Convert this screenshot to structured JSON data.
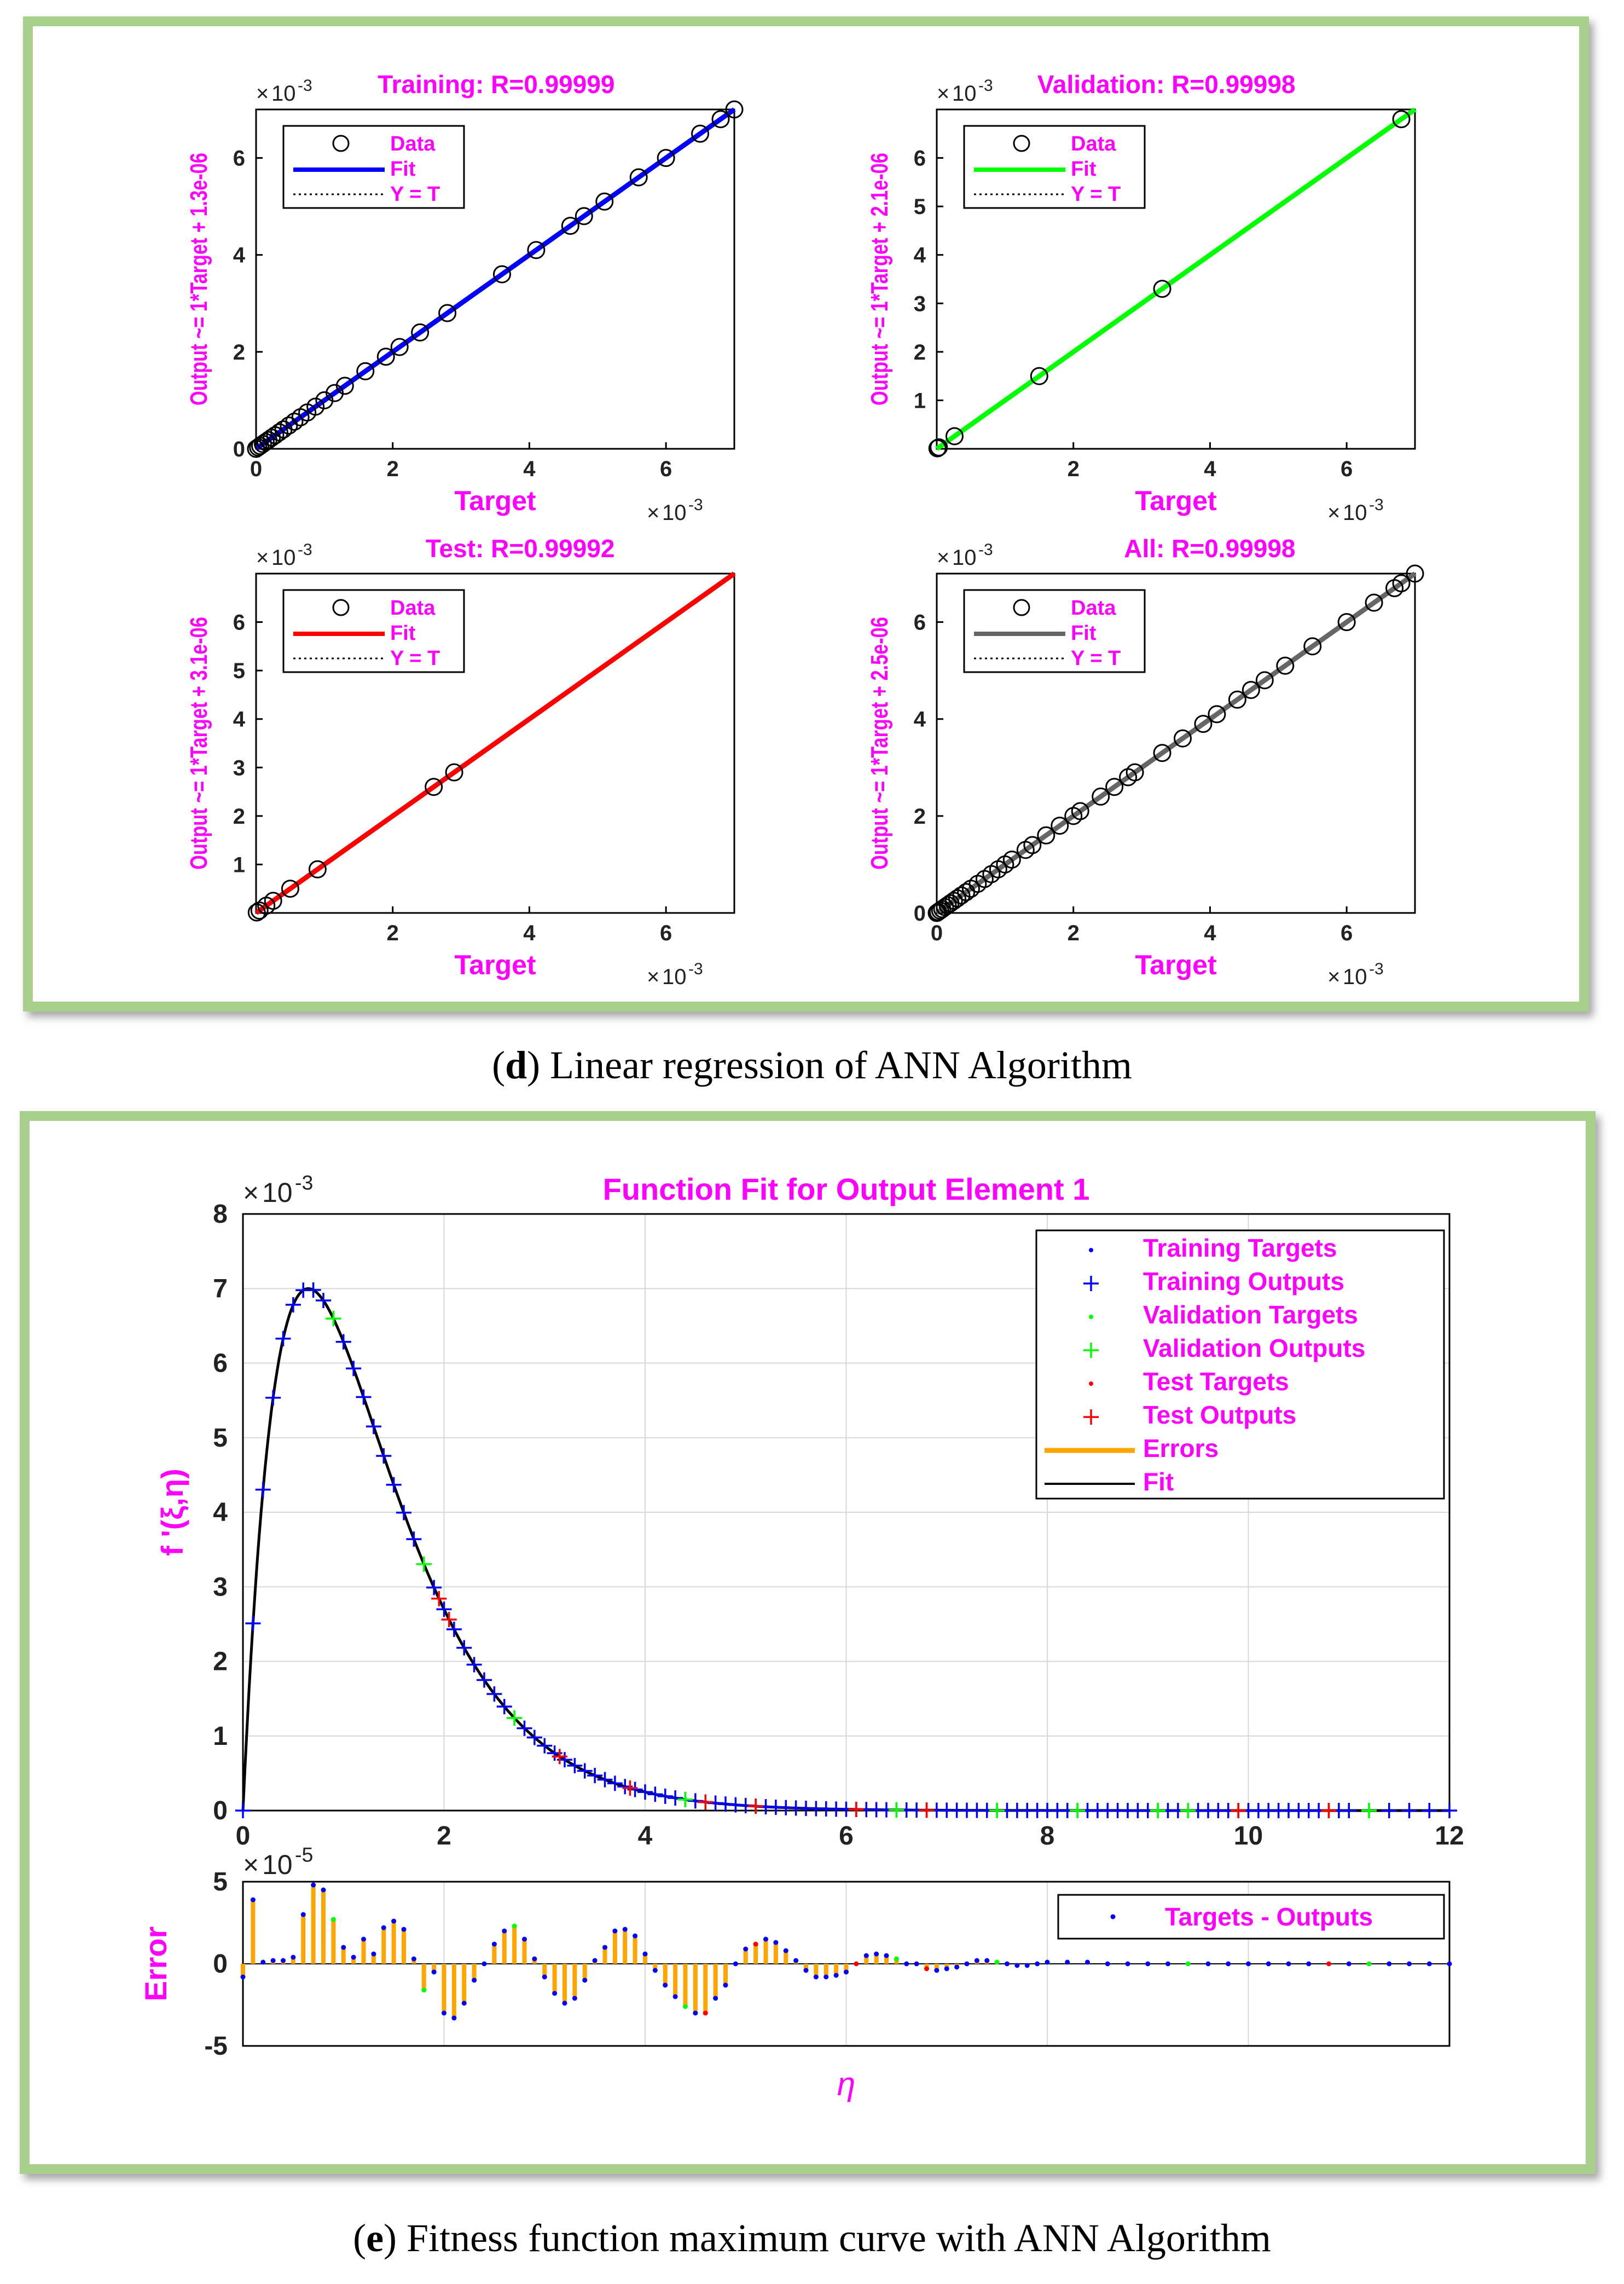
{
  "captions": {
    "d": {
      "letter": "d",
      "text": "Linear regression of ANN Algorithm"
    },
    "e": {
      "letter": "e",
      "text": "Fitness function maximum curve with ANN Algorithm"
    }
  },
  "colors": {
    "magenta": "#ff00ff",
    "training": "#0000ff",
    "validation": "#00ff00",
    "test": "#ff0000",
    "all": "#666666",
    "error": "#ffa500",
    "frame": "#a9cf8c"
  },
  "chart_data": [
    {
      "type": "scatter",
      "title": "Training: R=0.99999",
      "xlabel": "Target",
      "ylabel": "Output ~= 1*Target + 1.3e-06",
      "xlim": [
        0,
        0.007
      ],
      "ylim": [
        0,
        0.007
      ],
      "xticks": [
        "0",
        "2",
        "4",
        "6"
      ],
      "yticks": [
        "0",
        "2",
        "4",
        "6"
      ],
      "exponent": "10",
      "exponent_power": "-3",
      "exponent_prefix": "×",
      "fit_color": "#0000ff",
      "legend": [
        "Data",
        "Fit",
        "Y = T"
      ],
      "data": [
        0,
        3e-05,
        6e-05,
        0.0001,
        0.00014,
        0.00018,
        0.00023,
        0.00028,
        0.00034,
        0.0004,
        0.00048,
        0.00056,
        0.00065,
        0.00075,
        0.00087,
        0.001,
        0.00115,
        0.0013,
        0.0016,
        0.0019,
        0.0021,
        0.0024,
        0.0028,
        0.0036,
        0.0041,
        0.0046,
        0.0048,
        0.0051,
        0.0056,
        0.006,
        0.0065,
        0.0068,
        0.007
      ]
    },
    {
      "type": "scatter",
      "title": "Validation: R=0.99998",
      "xlabel": "Target",
      "ylabel": "Output ~= 1*Target + 2.1e-06",
      "xlim": [
        0,
        0.007
      ],
      "ylim": [
        0,
        0.007
      ],
      "xticks": [
        "2",
        "4",
        "6"
      ],
      "yticks": [
        "1",
        "2",
        "3",
        "4",
        "5",
        "6"
      ],
      "exponent": "10",
      "exponent_power": "-3",
      "exponent_prefix": "×",
      "fit_color": "#00ff00",
      "legend": [
        "Data",
        "Fit",
        "Y = T"
      ],
      "data": [
        1e-05,
        3e-05,
        0.00026,
        0.0015,
        0.0033,
        0.0068
      ]
    },
    {
      "type": "scatter",
      "title": "Test: R=0.99992",
      "xlabel": "Target",
      "ylabel": "Output ~= 1*Target + 3.1e-06",
      "xlim": [
        0,
        0.007
      ],
      "ylim": [
        0,
        0.007
      ],
      "xticks": [
        "2",
        "4",
        "6"
      ],
      "yticks": [
        "1",
        "2",
        "3",
        "4",
        "5",
        "6"
      ],
      "exponent": "10",
      "exponent_power": "-3",
      "exponent_prefix": "×",
      "fit_color": "#ff0000",
      "legend": [
        "Data",
        "Fit",
        "Y = T"
      ],
      "data": [
        1e-05,
        5e-05,
        0.00015,
        0.00025,
        0.0005,
        0.0009,
        0.0026,
        0.0029
      ]
    },
    {
      "type": "scatter",
      "title": "All: R=0.99998",
      "xlabel": "Target",
      "ylabel": "Output ~= 1*Target + 2.5e-06",
      "xlim": [
        0,
        0.007
      ],
      "ylim": [
        0,
        0.007
      ],
      "xticks": [
        "0",
        "2",
        "4",
        "6"
      ],
      "yticks": [
        "0",
        "2",
        "4",
        "6"
      ],
      "exponent": "10",
      "exponent_power": "-3",
      "exponent_prefix": "×",
      "fit_color": "#666666",
      "legend": [
        "Data",
        "Fit",
        "Y = T"
      ],
      "data": [
        0,
        2e-05,
        5e-05,
        8e-05,
        0.00012,
        0.00016,
        0.0002,
        0.00025,
        0.0003,
        0.00036,
        0.00043,
        0.0005,
        0.0006,
        0.0007,
        0.0008,
        0.0009,
        0.001,
        0.0011,
        0.0013,
        0.0014,
        0.0016,
        0.0018,
        0.002,
        0.0021,
        0.0024,
        0.0026,
        0.0028,
        0.0029,
        0.0033,
        0.0036,
        0.0039,
        0.0041,
        0.0044,
        0.0046,
        0.0048,
        0.0051,
        0.0055,
        0.006,
        0.0064,
        0.0067,
        0.0068,
        0.007
      ]
    },
    {
      "type": "line",
      "title": "Function Fit for Output Element 1",
      "xlabel": "η",
      "ylabel": "f '(ξ,η)",
      "xlim": [
        0,
        12
      ],
      "ylim": [
        0,
        0.008
      ],
      "xticks": [
        "0",
        "2",
        "4",
        "6",
        "8",
        "10",
        "12"
      ],
      "yticks": [
        "0",
        "1",
        "2",
        "3",
        "4",
        "5",
        "6",
        "7",
        "8"
      ],
      "exponent": "10",
      "exponent_power": "-3",
      "exponent_prefix": "×",
      "grid": true,
      "legend": [
        "Training Targets",
        "Training Outputs",
        "Validation Targets",
        "Validation Outputs",
        "Test Targets",
        "Test Outputs",
        "Errors",
        "Fit"
      ],
      "legend_position": "top-right",
      "curve": "eta*exp(1-eta/0.65)*0.007/0.65",
      "validation_eta": [
        0.9,
        1.8,
        2.7,
        4.4,
        6.5,
        7.5,
        8.3,
        9.1,
        9.4,
        11.2
      ],
      "test_eta": [
        1.95,
        2.05,
        3.15,
        3.85,
        4.6,
        5.1,
        6.1,
        6.8,
        9.9,
        10.8
      ],
      "error_panel": {
        "ylabel": "Error",
        "ylim": [
          -5,
          5
        ],
        "yticks": [
          "5",
          "0",
          "-5"
        ],
        "exponent": "10",
        "exponent_power": "-5",
        "exponent_prefix": "×",
        "legend": [
          "Targets - Outputs"
        ],
        "eta": [
          0,
          0.1,
          0.2,
          0.3,
          0.4,
          0.5,
          0.6,
          0.7,
          0.8,
          0.9,
          1.0,
          1.1,
          1.2,
          1.3,
          1.4,
          1.5,
          1.6,
          1.7,
          1.8,
          1.9,
          2.0,
          2.1,
          2.2,
          2.3,
          2.4,
          2.5,
          2.6,
          2.7,
          2.8,
          2.9,
          3.0,
          3.1,
          3.2,
          3.3,
          3.4,
          3.5,
          3.6,
          3.7,
          3.8,
          3.9,
          4.0,
          4.1,
          4.2,
          4.3,
          4.4,
          4.5,
          4.6,
          4.7,
          4.8,
          4.9,
          5.0,
          5.1,
          5.2,
          5.3,
          5.4,
          5.5,
          5.6,
          5.7,
          5.8,
          5.9,
          6.0,
          6.1,
          6.2,
          6.3,
          6.4,
          6.5,
          6.6,
          6.7,
          6.8,
          6.9,
          7.0,
          7.1,
          7.2,
          7.3,
          7.4,
          7.5,
          7.6,
          7.7,
          7.8,
          7.9,
          8.0,
          8.2,
          8.4,
          8.6,
          8.8,
          9.0,
          9.2,
          9.4,
          9.6,
          9.8,
          10.0,
          10.2,
          10.4,
          10.6,
          10.8,
          11.0,
          11.2,
          11.4,
          11.6,
          11.8,
          12.0
        ],
        "values": [
          -0.8,
          3.9,
          0.1,
          0.2,
          0.2,
          0.4,
          3.0,
          4.8,
          4.5,
          2.7,
          1.0,
          0.4,
          1.5,
          0.6,
          2.2,
          2.6,
          2.1,
          0.3,
          -1.6,
          -0.5,
          -3.0,
          -3.3,
          -2.4,
          -1.0,
          0.0,
          1.2,
          2.0,
          2.3,
          1.5,
          0.3,
          -0.8,
          -1.8,
          -2.4,
          -2.1,
          -1.0,
          0.2,
          1.0,
          2.0,
          2.1,
          1.7,
          0.6,
          -0.4,
          -1.3,
          -2.0,
          -2.6,
          -3.0,
          -3.0,
          -2.1,
          -1.3,
          0.0,
          0.9,
          1.2,
          1.5,
          1.3,
          0.8,
          0.2,
          -0.4,
          -0.8,
          -0.8,
          -0.7,
          -0.5,
          0.0,
          0.5,
          0.6,
          0.5,
          0.3,
          0.0,
          0.0,
          -0.3,
          -0.4,
          -0.3,
          -0.2,
          0.0,
          0.2,
          0.2,
          0.1,
          0.0,
          -0.1,
          -0.1,
          0.0,
          0.1,
          0.1,
          0.1,
          0.0,
          0.0,
          0.0,
          0.0,
          0.0,
          0.0,
          0.0,
          0.0,
          0.0,
          0.0,
          0.0,
          0.0,
          0.0,
          0.0,
          0.0,
          0.0,
          0.0,
          0.0
        ]
      }
    }
  ]
}
